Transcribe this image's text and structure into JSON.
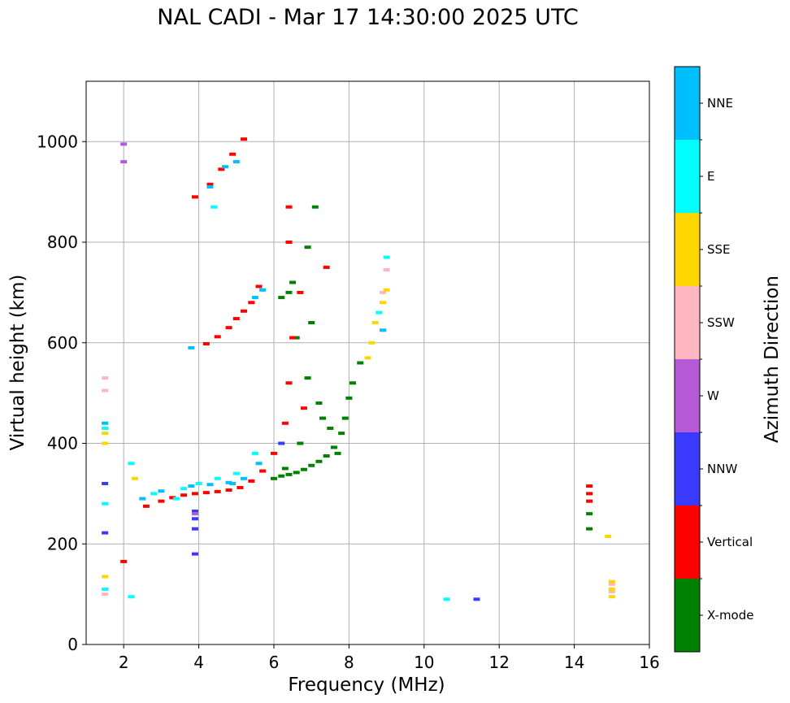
{
  "chart_data": {
    "type": "scatter",
    "title": "NAL CADI - Mar 17 14:30:00 2025 UTC",
    "xlabel": "Frequency (MHz)",
    "ylabel": "Virtual height (km)",
    "xlim": [
      1,
      16
    ],
    "ylim": [
      0,
      1120
    ],
    "xticks": [
      2,
      4,
      6,
      8,
      10,
      12,
      14,
      16
    ],
    "yticks": [
      0,
      200,
      400,
      600,
      800,
      1000
    ],
    "grid": true,
    "colorbar": {
      "label": "Azimuth Direction",
      "categories": [
        {
          "name": "X-mode",
          "color": "#008000"
        },
        {
          "name": "Vertical",
          "color": "#ff0000"
        },
        {
          "name": "NNW",
          "color": "#3a3aff"
        },
        {
          "name": "W",
          "color": "#b45ad6"
        },
        {
          "name": "SSW",
          "color": "#ffb6c1"
        },
        {
          "name": "SSE",
          "color": "#ffd700"
        },
        {
          "name": "E",
          "color": "#00ffff"
        },
        {
          "name": "NNE",
          "color": "#00bfff"
        }
      ]
    },
    "series": [
      {
        "name": "X-mode",
        "points": [
          [
            6.0,
            330
          ],
          [
            6.2,
            335
          ],
          [
            6.4,
            338
          ],
          [
            6.6,
            342
          ],
          [
            6.8,
            348
          ],
          [
            7.0,
            356
          ],
          [
            7.2,
            364
          ],
          [
            7.4,
            375
          ],
          [
            7.6,
            392
          ],
          [
            7.8,
            420
          ],
          [
            7.9,
            450
          ],
          [
            8.0,
            490
          ],
          [
            8.1,
            520
          ],
          [
            8.3,
            560
          ],
          [
            7.5,
            430
          ],
          [
            7.2,
            480
          ],
          [
            6.9,
            530
          ],
          [
            6.6,
            610
          ],
          [
            6.4,
            700
          ],
          [
            6.5,
            720
          ],
          [
            6.9,
            790
          ],
          [
            7.1,
            870
          ],
          [
            6.3,
            350
          ],
          [
            6.7,
            400
          ],
          [
            7.3,
            450
          ],
          [
            7.7,
            380
          ],
          [
            14.4,
            230
          ],
          [
            14.4,
            260
          ],
          [
            6.2,
            690
          ],
          [
            7.0,
            640
          ]
        ]
      },
      {
        "name": "Vertical",
        "points": [
          [
            2.6,
            275
          ],
          [
            3.0,
            285
          ],
          [
            3.3,
            292
          ],
          [
            3.6,
            297
          ],
          [
            3.9,
            300
          ],
          [
            4.2,
            302
          ],
          [
            4.5,
            304
          ],
          [
            4.8,
            307
          ],
          [
            5.1,
            312
          ],
          [
            5.4,
            325
          ],
          [
            5.7,
            345
          ],
          [
            6.0,
            380
          ],
          [
            6.3,
            440
          ],
          [
            6.4,
            520
          ],
          [
            6.5,
            610
          ],
          [
            6.7,
            700
          ],
          [
            6.4,
            800
          ],
          [
            6.4,
            870
          ],
          [
            4.2,
            598
          ],
          [
            4.5,
            612
          ],
          [
            4.8,
            630
          ],
          [
            5.0,
            648
          ],
          [
            5.2,
            663
          ],
          [
            5.4,
            680
          ],
          [
            5.6,
            712
          ],
          [
            3.9,
            890
          ],
          [
            4.3,
            915
          ],
          [
            4.6,
            945
          ],
          [
            4.9,
            975
          ],
          [
            5.2,
            1005
          ],
          [
            2.0,
            165
          ],
          [
            14.4,
            285
          ],
          [
            14.4,
            300
          ],
          [
            14.4,
            315
          ],
          [
            7.4,
            750
          ],
          [
            6.8,
            470
          ]
        ]
      },
      {
        "name": "NNW",
        "points": [
          [
            3.9,
            230
          ],
          [
            3.9,
            250
          ],
          [
            3.9,
            265
          ],
          [
            3.9,
            180
          ],
          [
            11.4,
            90
          ],
          [
            1.5,
            222
          ],
          [
            1.5,
            320
          ],
          [
            6.2,
            400
          ]
        ]
      },
      {
        "name": "W",
        "points": [
          [
            2.0,
            995
          ],
          [
            2.0,
            960
          ],
          [
            3.9,
            260
          ]
        ]
      },
      {
        "name": "SSW",
        "points": [
          [
            1.5,
            530
          ],
          [
            1.5,
            505
          ],
          [
            15.0,
            105
          ],
          [
            15.0,
            120
          ],
          [
            8.9,
            700
          ],
          [
            1.5,
            100
          ],
          [
            9.0,
            745
          ]
        ]
      },
      {
        "name": "SSE",
        "points": [
          [
            1.5,
            420
          ],
          [
            1.5,
            400
          ],
          [
            8.5,
            570
          ],
          [
            8.6,
            600
          ],
          [
            8.7,
            640
          ],
          [
            8.9,
            680
          ],
          [
            9.0,
            705
          ],
          [
            15.0,
            95
          ],
          [
            15.0,
            110
          ],
          [
            15.0,
            125
          ],
          [
            14.9,
            215
          ],
          [
            2.3,
            330
          ],
          [
            1.5,
            135
          ]
        ]
      },
      {
        "name": "E",
        "points": [
          [
            1.5,
            430
          ],
          [
            1.5,
            280
          ],
          [
            2.2,
            360
          ],
          [
            2.2,
            95
          ],
          [
            10.6,
            90
          ],
          [
            2.8,
            300
          ],
          [
            3.4,
            290
          ],
          [
            3.6,
            310
          ],
          [
            4.0,
            320
          ],
          [
            4.5,
            330
          ],
          [
            5.0,
            340
          ],
          [
            5.5,
            380
          ],
          [
            4.4,
            870
          ],
          [
            8.8,
            660
          ],
          [
            9.0,
            770
          ],
          [
            1.5,
            110
          ]
        ]
      },
      {
        "name": "NNE",
        "points": [
          [
            1.5,
            440
          ],
          [
            2.5,
            290
          ],
          [
            3.0,
            305
          ],
          [
            3.8,
            315
          ],
          [
            4.3,
            318
          ],
          [
            4.8,
            322
          ],
          [
            5.2,
            330
          ],
          [
            5.6,
            360
          ],
          [
            4.3,
            910
          ],
          [
            4.7,
            950
          ],
          [
            5.0,
            960
          ],
          [
            5.5,
            690
          ],
          [
            5.7,
            705
          ],
          [
            4.9,
            320
          ],
          [
            8.9,
            625
          ],
          [
            3.8,
            590
          ]
        ]
      }
    ]
  }
}
